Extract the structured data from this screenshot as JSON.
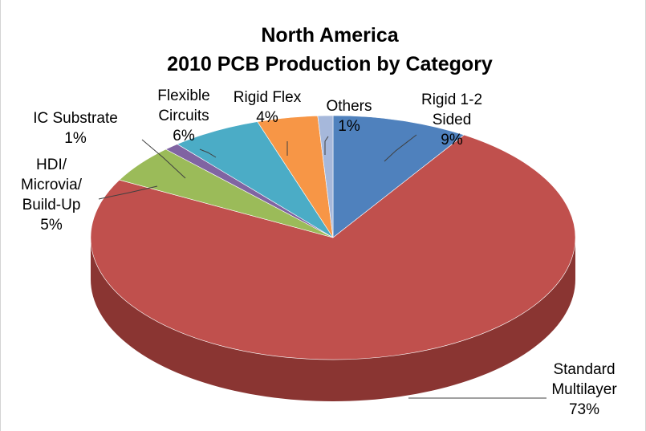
{
  "chart_data": {
    "type": "pie",
    "title": "North America",
    "subtitle": "2010 PCB Production by Category",
    "legend": "none",
    "slices": [
      {
        "name_lines": [
          "Rigid 1-2",
          "Sided"
        ],
        "value": 9,
        "label": "9%",
        "color": "#4f81bd",
        "side": "#3a6191"
      },
      {
        "name_lines": [
          "Standard",
          "Multilayer"
        ],
        "value": 73,
        "label": "73%",
        "color": "#c0504d",
        "side": "#8a3532"
      },
      {
        "name_lines": [
          "HDI/",
          "Microvia/",
          "Build-Up"
        ],
        "value": 5,
        "label": "5%",
        "color": "#9bbb59",
        "side": "#728a40"
      },
      {
        "name_lines": [
          "IC Substrate"
        ],
        "value": 1,
        "label": "1%",
        "color": "#8064a2",
        "side": "#5d4877"
      },
      {
        "name_lines": [
          "Flexible",
          "Circuits"
        ],
        "value": 6,
        "label": "6%",
        "color": "#4bacc6",
        "side": "#357f93"
      },
      {
        "name_lines": [
          "Rigid Flex"
        ],
        "value": 4,
        "label": "4%",
        "color": "#f79646",
        "side": "#b96e30"
      },
      {
        "name_lines": [
          "Others"
        ],
        "value": 1,
        "label": "1%",
        "color": "#a6b8db",
        "side": "#7d8fb3"
      }
    ]
  }
}
